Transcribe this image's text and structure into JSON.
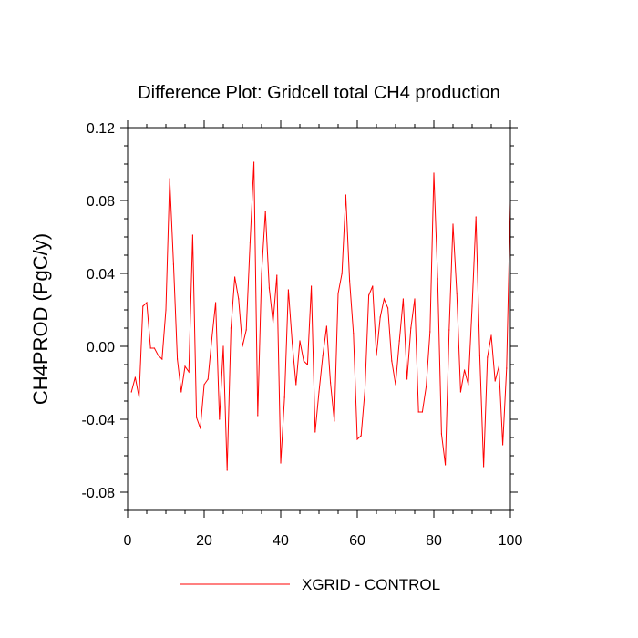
{
  "chart_data": {
    "type": "line",
    "title": "Difference Plot: Gridcell total CH4 production",
    "xlabel": "",
    "ylabel": "CH4PROD  (PgC/y)",
    "xlim": [
      0,
      100
    ],
    "ylim": [
      -0.09,
      0.12
    ],
    "xticks": [
      0,
      20,
      40,
      60,
      80,
      100
    ],
    "xtick_labels": [
      "0",
      "20",
      "40",
      "60",
      "80",
      "100"
    ],
    "yticks": [
      -0.08,
      -0.04,
      0.0,
      0.04,
      0.08,
      0.12
    ],
    "ytick_labels": [
      "-0.08",
      "-0.04",
      "0.00",
      "0.04",
      "0.08",
      "0.12"
    ],
    "legend_position": "bottom",
    "series": [
      {
        "name": "XGRID - CONTROL",
        "color": "#ff0000",
        "x": [
          1,
          2,
          3,
          4,
          5,
          6,
          7,
          8,
          9,
          10,
          11,
          12,
          13,
          14,
          15,
          16,
          17,
          18,
          19,
          20,
          21,
          22,
          23,
          24,
          25,
          26,
          27,
          28,
          29,
          30,
          31,
          32,
          33,
          34,
          35,
          36,
          37,
          38,
          39,
          40,
          41,
          42,
          43,
          44,
          45,
          46,
          47,
          48,
          49,
          50,
          51,
          52,
          53,
          54,
          55,
          56,
          57,
          58,
          59,
          60,
          61,
          62,
          63,
          64,
          65,
          66,
          67,
          68,
          69,
          70,
          71,
          72,
          73,
          74,
          75,
          76,
          77,
          78,
          79,
          80,
          81,
          82,
          83,
          84,
          85,
          86,
          87,
          88,
          89,
          90,
          91,
          92,
          93,
          94,
          95,
          96,
          97,
          98,
          99,
          100
        ],
        "values": [
          -0.025,
          -0.017,
          -0.028,
          0.022,
          0.024,
          -0.001,
          -0.001,
          -0.005,
          -0.007,
          0.02,
          0.092,
          0.045,
          -0.007,
          -0.025,
          -0.011,
          -0.014,
          0.061,
          -0.039,
          -0.045,
          -0.021,
          -0.018,
          0.004,
          0.024,
          -0.04,
          0.0,
          -0.068,
          0.01,
          0.038,
          0.026,
          0.0,
          0.009,
          0.057,
          0.101,
          -0.038,
          0.04,
          0.074,
          0.032,
          0.013,
          0.039,
          -0.064,
          -0.028,
          0.031,
          0.002,
          -0.021,
          0.003,
          -0.008,
          -0.01,
          0.033,
          -0.047,
          -0.025,
          -0.005,
          0.011,
          -0.02,
          -0.041,
          0.029,
          0.04,
          0.083,
          0.036,
          0.007,
          -0.051,
          -0.049,
          -0.024,
          0.028,
          0.033,
          -0.005,
          0.016,
          0.026,
          0.021,
          -0.008,
          -0.021,
          0.003,
          0.026,
          -0.018,
          0.01,
          0.026,
          -0.036,
          -0.036,
          -0.022,
          0.008,
          0.095,
          0.037,
          -0.048,
          -0.065,
          0.009,
          0.067,
          0.029,
          -0.025,
          -0.013,
          -0.021,
          0.022,
          0.071,
          -0.005,
          -0.066,
          -0.006,
          0.006,
          -0.019,
          -0.011,
          -0.054,
          -0.012,
          0.079
        ]
      }
    ]
  }
}
